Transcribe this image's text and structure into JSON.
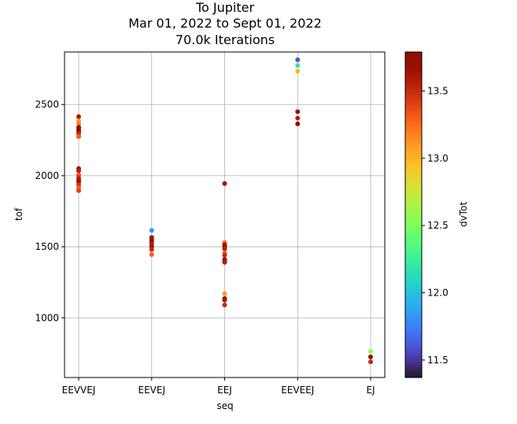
{
  "chart_data": {
    "type": "scatter",
    "title_lines": [
      "To Jupiter",
      "Mar 01, 2022 to Sept 01, 2022",
      "70.0k Iterations"
    ],
    "xlabel": "seq",
    "ylabel": "tof",
    "categories": [
      "EEVVEJ",
      "EEVEJ",
      "EEJ",
      "EEVEEJ",
      "EJ"
    ],
    "yticks": [
      1000,
      1500,
      2000,
      2500
    ],
    "ylim": [
      580,
      2870
    ],
    "grid": true,
    "colorbar": {
      "label": "dvTot",
      "min": 11.37,
      "max": 13.79,
      "ticks": [
        11.5,
        12.0,
        12.5,
        13.0,
        13.5
      ],
      "colormap": "turbo"
    },
    "points": [
      {
        "seq": "EEVVEJ",
        "tof": 2415,
        "dvTot": 13.6
      },
      {
        "seq": "EEVVEJ",
        "tof": 2385,
        "dvTot": 13.1
      },
      {
        "seq": "EEVVEJ",
        "tof": 2365,
        "dvTot": 13.2
      },
      {
        "seq": "EEVVEJ",
        "tof": 2340,
        "dvTot": 13.75
      },
      {
        "seq": "EEVVEJ",
        "tof": 2325,
        "dvTot": 13.7
      },
      {
        "seq": "EEVVEJ",
        "tof": 2310,
        "dvTot": 13.8
      },
      {
        "seq": "EEVVEJ",
        "tof": 2295,
        "dvTot": 13.5
      },
      {
        "seq": "EEVVEJ",
        "tof": 2275,
        "dvTot": 13.3
      },
      {
        "seq": "EEVVEJ",
        "tof": 2050,
        "dvTot": 13.65
      },
      {
        "seq": "EEVVEJ",
        "tof": 2035,
        "dvTot": 13.55
      },
      {
        "seq": "EEVVEJ",
        "tof": 2005,
        "dvTot": 13.35
      },
      {
        "seq": "EEVVEJ",
        "tof": 1985,
        "dvTot": 13.5
      },
      {
        "seq": "EEVVEJ",
        "tof": 1970,
        "dvTot": 13.6
      },
      {
        "seq": "EEVVEJ",
        "tof": 1955,
        "dvTot": 13.7
      },
      {
        "seq": "EEVVEJ",
        "tof": 1935,
        "dvTot": 13.45
      },
      {
        "seq": "EEVVEJ",
        "tof": 1915,
        "dvTot": 13.3
      },
      {
        "seq": "EEVVEJ",
        "tof": 1895,
        "dvTot": 13.4
      },
      {
        "seq": "EEVEJ",
        "tof": 1615,
        "dvTot": 11.85
      },
      {
        "seq": "EEVEJ",
        "tof": 1565,
        "dvTot": 13.7
      },
      {
        "seq": "EEVEJ",
        "tof": 1550,
        "dvTot": 13.6
      },
      {
        "seq": "EEVEJ",
        "tof": 1535,
        "dvTot": 13.75
      },
      {
        "seq": "EEVEJ",
        "tof": 1520,
        "dvTot": 13.55
      },
      {
        "seq": "EEVEJ",
        "tof": 1500,
        "dvTot": 13.65
      },
      {
        "seq": "EEVEJ",
        "tof": 1480,
        "dvTot": 13.5
      },
      {
        "seq": "EEVEJ",
        "tof": 1445,
        "dvTot": 13.3
      },
      {
        "seq": "EEJ",
        "tof": 1945,
        "dvTot": 13.6
      },
      {
        "seq": "EEJ",
        "tof": 1530,
        "dvTot": 13.2
      },
      {
        "seq": "EEJ",
        "tof": 1515,
        "dvTot": 13.6
      },
      {
        "seq": "EEJ",
        "tof": 1500,
        "dvTot": 13.75
      },
      {
        "seq": "EEJ",
        "tof": 1485,
        "dvTot": 13.55
      },
      {
        "seq": "EEJ",
        "tof": 1455,
        "dvTot": 13.3
      },
      {
        "seq": "EEJ",
        "tof": 1440,
        "dvTot": 13.5
      },
      {
        "seq": "EEJ",
        "tof": 1410,
        "dvTot": 13.7
      },
      {
        "seq": "EEJ",
        "tof": 1400,
        "dvTot": 13.65
      },
      {
        "seq": "EEJ",
        "tof": 1390,
        "dvTot": 13.55
      },
      {
        "seq": "EEJ",
        "tof": 1170,
        "dvTot": 13.1
      },
      {
        "seq": "EEJ",
        "tof": 1135,
        "dvTot": 13.7
      },
      {
        "seq": "EEJ",
        "tof": 1125,
        "dvTot": 13.6
      },
      {
        "seq": "EEJ",
        "tof": 1090,
        "dvTot": 13.5
      },
      {
        "seq": "EEVEEJ",
        "tof": 2815,
        "dvTot": 11.6
      },
      {
        "seq": "EEVEEJ",
        "tof": 2775,
        "dvTot": 12.2
      },
      {
        "seq": "EEVEEJ",
        "tof": 2735,
        "dvTot": 13.0
      },
      {
        "seq": "EEVEEJ",
        "tof": 2450,
        "dvTot": 13.65
      },
      {
        "seq": "EEVEEJ",
        "tof": 2405,
        "dvTot": 13.55
      },
      {
        "seq": "EEVEEJ",
        "tof": 2365,
        "dvTot": 13.78
      },
      {
        "seq": "EJ",
        "tof": 765,
        "dvTot": 12.55
      },
      {
        "seq": "EJ",
        "tof": 725,
        "dvTot": 13.7
      },
      {
        "seq": "EJ",
        "tof": 690,
        "dvTot": 13.5
      }
    ]
  }
}
